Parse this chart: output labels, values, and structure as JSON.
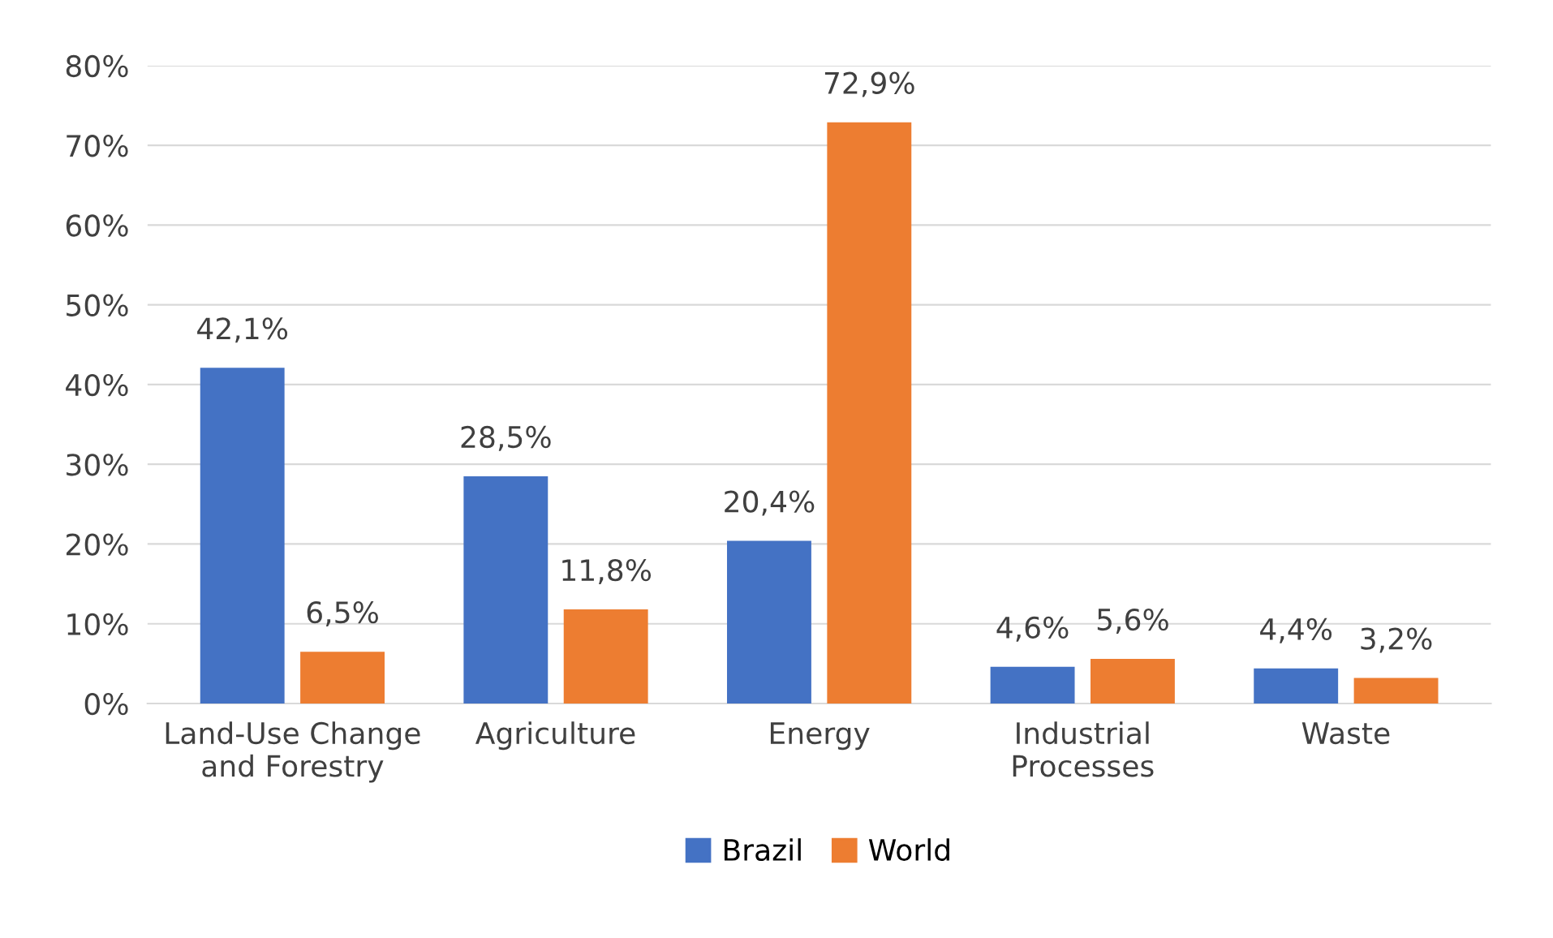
{
  "chart_data": {
    "type": "bar",
    "categories": [
      "Land-Use Change\nand Forestry",
      "Agriculture",
      "Energy",
      "Industrial\nProcesses",
      "Waste"
    ],
    "series": [
      {
        "name": "Brazil",
        "color": "#4472c4",
        "values": [
          42.1,
          28.5,
          20.4,
          4.6,
          4.4
        ],
        "value_labels": [
          "42,1%",
          "28,5%",
          "20,4%",
          "4,6%",
          "4,4%"
        ]
      },
      {
        "name": "World",
        "color": "#ed7d31",
        "values": [
          6.5,
          11.8,
          72.9,
          5.6,
          3.2
        ],
        "value_labels": [
          "6,5%",
          "11,8%",
          "72,9%",
          "5,6%",
          "3,2%"
        ]
      }
    ],
    "ylim": [
      0,
      80
    ],
    "yticks": [
      {
        "value": 0,
        "label": "0%"
      },
      {
        "value": 10,
        "label": "10%"
      },
      {
        "value": 20,
        "label": "20%"
      },
      {
        "value": 30,
        "label": "30%"
      },
      {
        "value": 40,
        "label": "40%"
      },
      {
        "value": 50,
        "label": "50%"
      },
      {
        "value": 60,
        "label": "60%"
      },
      {
        "value": 70,
        "label": "70%"
      },
      {
        "value": 80,
        "label": "80%"
      }
    ],
    "grid": "y",
    "legend": "bottom"
  }
}
